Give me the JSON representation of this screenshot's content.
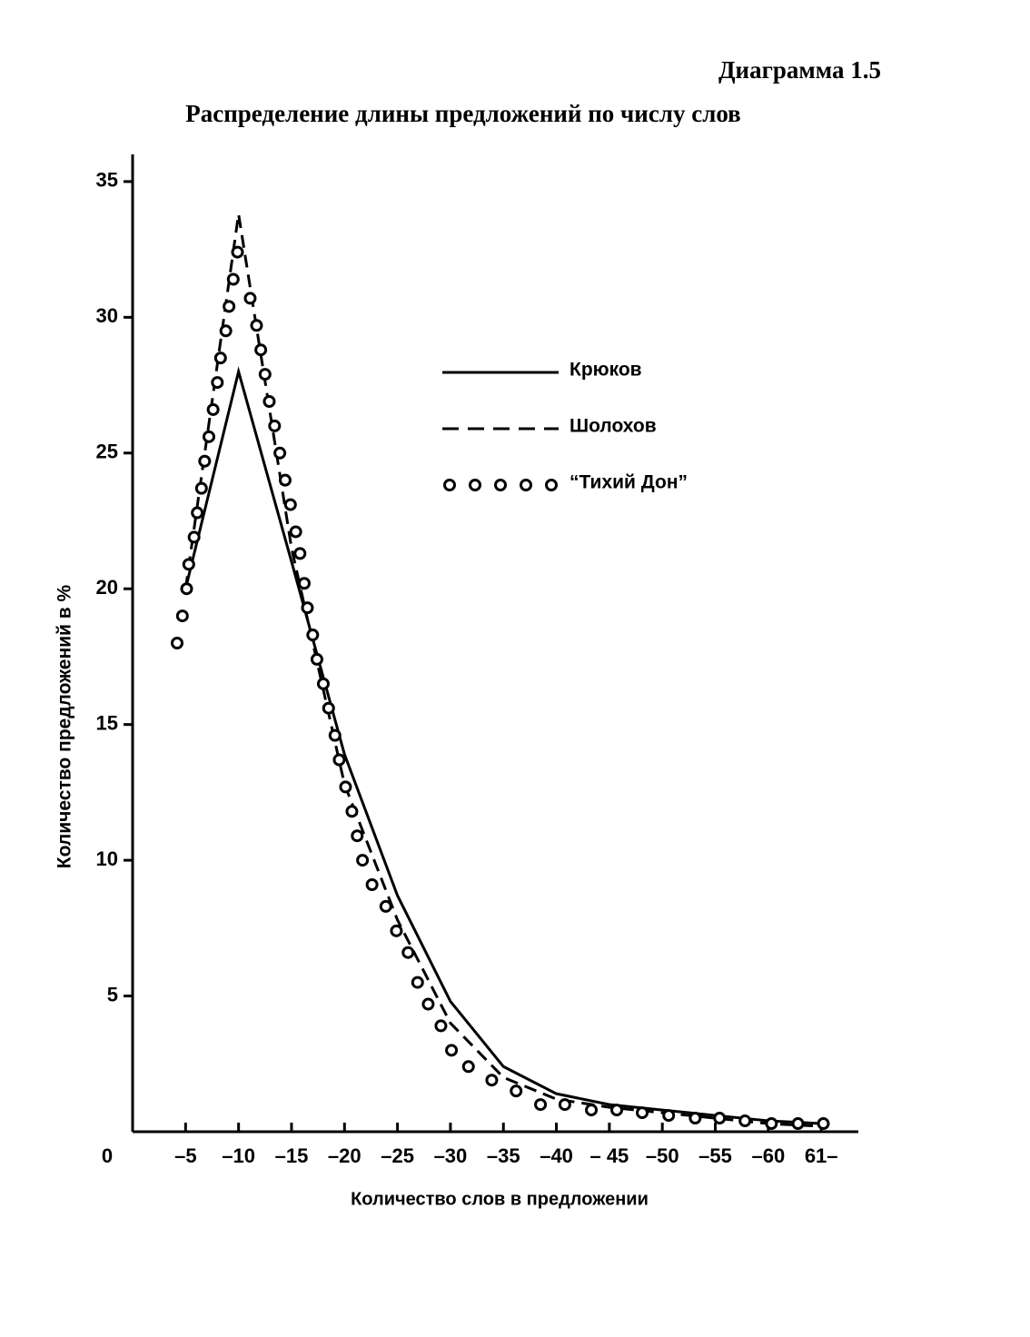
{
  "chart_data": {
    "type": "line",
    "label": "Диаграмма 1.5",
    "title": "Распределение длины предложений по числу слов",
    "x_label": "Количество слов в предложении",
    "y_label": "Количество предложений в %",
    "xlim": [
      0,
      68.5
    ],
    "ylim": [
      0,
      36
    ],
    "xticks": [
      {
        "value": 5,
        "label": "–5"
      },
      {
        "value": 10,
        "label": "–10"
      },
      {
        "value": 15,
        "label": "–15"
      },
      {
        "value": 20,
        "label": "–20"
      },
      {
        "value": 25,
        "label": "–25"
      },
      {
        "value": 30,
        "label": "–30"
      },
      {
        "value": 35,
        "label": "–35"
      },
      {
        "value": 40,
        "label": "–40"
      },
      {
        "value": 45,
        "label": "– 45"
      },
      {
        "value": 50,
        "label": "–50"
      },
      {
        "value": 55,
        "label": "–55"
      },
      {
        "value": 60,
        "label": "–60"
      },
      {
        "value": 65,
        "label": "61–"
      }
    ],
    "yticks": [
      0,
      5,
      10,
      15,
      20,
      25,
      30,
      35
    ],
    "series": [
      {
        "name": "Крюков",
        "color": "#000000",
        "style": "solid",
        "x": [
          5,
          10,
          15,
          20,
          25,
          30,
          35,
          40,
          45,
          50,
          55,
          60,
          65
        ],
        "values": [
          20,
          28,
          21,
          13.9,
          8.7,
          4.8,
          2.4,
          1.4,
          1.0,
          0.8,
          0.6,
          0.4,
          0.3
        ]
      },
      {
        "name": "Шолохов",
        "color": "#000000",
        "style": "dashed",
        "x": [
          5,
          10,
          15,
          20,
          25,
          30,
          35,
          40,
          45,
          50,
          55,
          60,
          65
        ],
        "values": [
          20,
          33.8,
          21.5,
          12.8,
          7.8,
          4,
          2,
          1.2,
          0.9,
          0.7,
          0.5,
          0.3,
          0.2
        ]
      },
      {
        "name": "“Тихий Дон”",
        "color": "#000000",
        "style": "markers",
        "x": [
          4.2,
          4.7,
          5.1,
          5.3,
          5.8,
          6.1,
          6.5,
          6.8,
          7.2,
          7.6,
          8.0,
          8.3,
          8.8,
          9.1,
          9.5,
          9.9,
          11.1,
          11.7,
          12.1,
          12.5,
          12.9,
          13.4,
          13.9,
          14.4,
          14.9,
          15.4,
          15.8,
          16.2,
          16.5,
          17.0,
          17.4,
          18.0,
          18.5,
          19.1,
          19.5,
          20.1,
          20.7,
          21.2,
          21.7,
          22.6,
          23.9,
          24.9,
          26.0,
          26.9,
          27.9,
          29.1,
          30.1,
          31.7,
          33.9,
          36.2,
          38.5,
          40.8,
          43.3,
          45.7,
          48.1,
          50.6,
          53.1,
          55.4,
          57.8,
          60.3,
          62.8,
          65.2
        ],
        "values": [
          18.0,
          19.0,
          20.0,
          20.9,
          21.9,
          22.8,
          23.7,
          24.7,
          25.6,
          26.6,
          27.6,
          28.5,
          29.5,
          30.4,
          31.4,
          32.4,
          30.7,
          29.7,
          28.8,
          27.9,
          26.9,
          26.0,
          25.0,
          24.0,
          23.1,
          22.1,
          21.3,
          20.2,
          19.3,
          18.3,
          17.4,
          16.5,
          15.6,
          14.6,
          13.7,
          12.7,
          11.8,
          10.9,
          10.0,
          9.1,
          8.3,
          7.4,
          6.6,
          5.5,
          4.7,
          3.9,
          3.0,
          2.4,
          1.9,
          1.5,
          1.0,
          1.0,
          0.8,
          0.8,
          0.7,
          0.6,
          0.5,
          0.5,
          0.4,
          0.3,
          0.3,
          0.3
        ]
      }
    ]
  }
}
